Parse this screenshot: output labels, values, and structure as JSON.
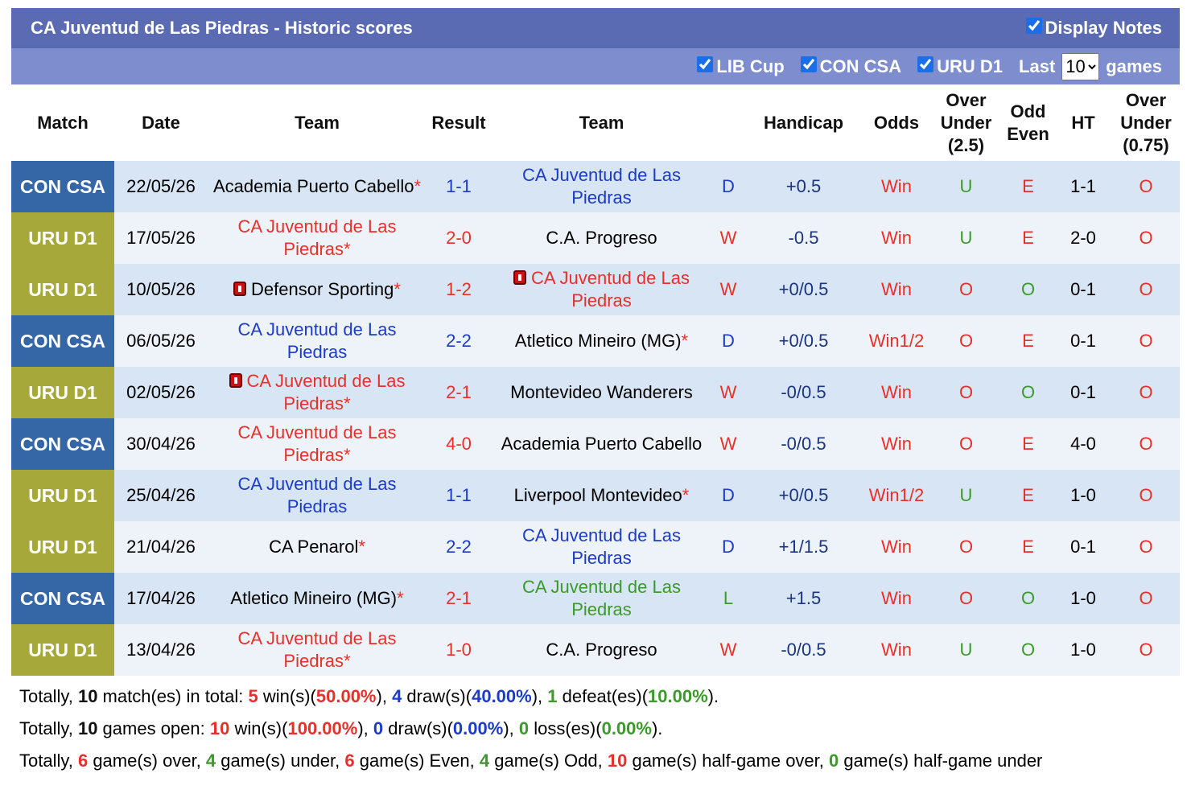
{
  "header": {
    "title": "CA Juventud de Las Piedras - Historic scores",
    "display_notes": "Display Notes",
    "filters": [
      "LIB Cup",
      "CON CSA",
      "URU D1"
    ],
    "last_label": "Last",
    "last_value": "10",
    "games_label": "games"
  },
  "table": {
    "columns": [
      "Match",
      "Date",
      "Team",
      "Result",
      "Team",
      "Handicap",
      "Odds",
      "Over Under (2.5)",
      "Odd Even",
      "HT",
      "Over Under (0.75)"
    ],
    "rows": [
      {
        "match": "CON CSA",
        "date": "22/05/26",
        "home": {
          "name": "Academia Puerto Cabello",
          "star": "*"
        },
        "score": "1-1",
        "away": {
          "name": "CA Juventud de Las Piedras",
          "focus": true
        },
        "result": "D",
        "handicap": "+0.5",
        "odds": "Win",
        "ou": "U",
        "oe": "E",
        "ht": "1-1",
        "ou075": "O"
      },
      {
        "match": "URU D1",
        "date": "17/05/26",
        "home": {
          "name": "CA Juventud de Las Piedras",
          "star": "*",
          "focus": true
        },
        "score": "2-0",
        "away": {
          "name": "C.A. Progreso"
        },
        "result": "W",
        "handicap": "-0.5",
        "odds": "Win",
        "ou": "U",
        "oe": "E",
        "ht": "2-0",
        "ou075": "O"
      },
      {
        "match": "URU D1",
        "date": "10/05/26",
        "home": {
          "name": "Defensor Sporting",
          "star": "*",
          "card": true
        },
        "score": "1-2",
        "away": {
          "name": "CA Juventud de Las Piedras",
          "focus": true,
          "card": true
        },
        "result": "W",
        "handicap": "+0/0.5",
        "odds": "Win",
        "ou": "O",
        "oe": "O",
        "ht": "0-1",
        "ou075": "O"
      },
      {
        "match": "CON CSA",
        "date": "06/05/26",
        "home": {
          "name": "CA Juventud de Las Piedras",
          "focus": true
        },
        "score": "2-2",
        "away": {
          "name": "Atletico Mineiro (MG)",
          "star": "*"
        },
        "result": "D",
        "handicap": "+0/0.5",
        "odds": "Win1/2",
        "ou": "O",
        "oe": "E",
        "ht": "0-1",
        "ou075": "O"
      },
      {
        "match": "URU D1",
        "date": "02/05/26",
        "home": {
          "name": "CA Juventud de Las Piedras",
          "star": "*",
          "focus": true,
          "card": true
        },
        "score": "2-1",
        "away": {
          "name": "Montevideo Wanderers"
        },
        "result": "W",
        "handicap": "-0/0.5",
        "odds": "Win",
        "ou": "O",
        "oe": "O",
        "ht": "0-1",
        "ou075": "O"
      },
      {
        "match": "CON CSA",
        "date": "30/04/26",
        "home": {
          "name": "CA Juventud de Las Piedras",
          "star": "*",
          "focus": true
        },
        "score": "4-0",
        "away": {
          "name": "Academia Puerto Cabello"
        },
        "result": "W",
        "handicap": "-0/0.5",
        "odds": "Win",
        "ou": "O",
        "oe": "E",
        "ht": "4-0",
        "ou075": "O"
      },
      {
        "match": "URU D1",
        "date": "25/04/26",
        "home": {
          "name": "CA Juventud de Las Piedras",
          "focus": true
        },
        "score": "1-1",
        "away": {
          "name": "Liverpool Montevideo",
          "star": "*"
        },
        "result": "D",
        "handicap": "+0/0.5",
        "odds": "Win1/2",
        "ou": "U",
        "oe": "E",
        "ht": "1-0",
        "ou075": "O"
      },
      {
        "match": "URU D1",
        "date": "21/04/26",
        "home": {
          "name": "CA Penarol",
          "star": "*"
        },
        "score": "2-2",
        "away": {
          "name": "CA Juventud de Las Piedras",
          "focus": true
        },
        "result": "D",
        "handicap": "+1/1.5",
        "odds": "Win",
        "ou": "O",
        "oe": "E",
        "ht": "0-1",
        "ou075": "O"
      },
      {
        "match": "CON CSA",
        "date": "17/04/26",
        "home": {
          "name": "Atletico Mineiro (MG)",
          "star": "*"
        },
        "score": "2-1",
        "away": {
          "name": "CA Juventud de Las Piedras",
          "focus": true
        },
        "result": "L",
        "handicap": "+1.5",
        "odds": "Win",
        "ou": "O",
        "oe": "O",
        "ht": "1-0",
        "ou075": "O"
      },
      {
        "match": "URU D1",
        "date": "13/04/26",
        "home": {
          "name": "CA Juventud de Las Piedras",
          "star": "*",
          "focus": true
        },
        "score": "1-0",
        "away": {
          "name": "C.A. Progreso"
        },
        "result": "W",
        "handicap": "-0/0.5",
        "odds": "Win",
        "ou": "U",
        "oe": "O",
        "ht": "1-0",
        "ou075": "O"
      }
    ]
  },
  "summary": [
    [
      {
        "t": "Totally, "
      },
      {
        "t": "10",
        "s": "num"
      },
      {
        "t": " match(es) in total: "
      },
      {
        "t": "5",
        "s": "win"
      },
      {
        "t": " win(s)("
      },
      {
        "t": "50.00%",
        "s": "win"
      },
      {
        "t": "), "
      },
      {
        "t": "4",
        "s": "draw"
      },
      {
        "t": " draw(s)("
      },
      {
        "t": "40.00%",
        "s": "draw"
      },
      {
        "t": "), "
      },
      {
        "t": "1",
        "s": "loss"
      },
      {
        "t": " defeat(es)("
      },
      {
        "t": "10.00%",
        "s": "loss"
      },
      {
        "t": ")."
      }
    ],
    [
      {
        "t": "Totally, "
      },
      {
        "t": "10",
        "s": "num"
      },
      {
        "t": " games open: "
      },
      {
        "t": "10",
        "s": "win"
      },
      {
        "t": " win(s)("
      },
      {
        "t": "100.00%",
        "s": "win"
      },
      {
        "t": "), "
      },
      {
        "t": "0",
        "s": "draw"
      },
      {
        "t": " draw(s)("
      },
      {
        "t": "0.00%",
        "s": "draw"
      },
      {
        "t": "), "
      },
      {
        "t": "0",
        "s": "loss"
      },
      {
        "t": " loss(es)("
      },
      {
        "t": "0.00%",
        "s": "loss"
      },
      {
        "t": ")."
      }
    ],
    [
      {
        "t": "Totally, "
      },
      {
        "t": "6",
        "s": "win"
      },
      {
        "t": " game(s) over, "
      },
      {
        "t": "4",
        "s": "loss"
      },
      {
        "t": " game(s) under, "
      },
      {
        "t": "6",
        "s": "win"
      },
      {
        "t": " game(s) Even, "
      },
      {
        "t": "4",
        "s": "loss"
      },
      {
        "t": " game(s) Odd, "
      },
      {
        "t": "10",
        "s": "win"
      },
      {
        "t": " game(s) half-game over, "
      },
      {
        "t": "0",
        "s": "loss"
      },
      {
        "t": " game(s) half-game under"
      }
    ]
  ]
}
